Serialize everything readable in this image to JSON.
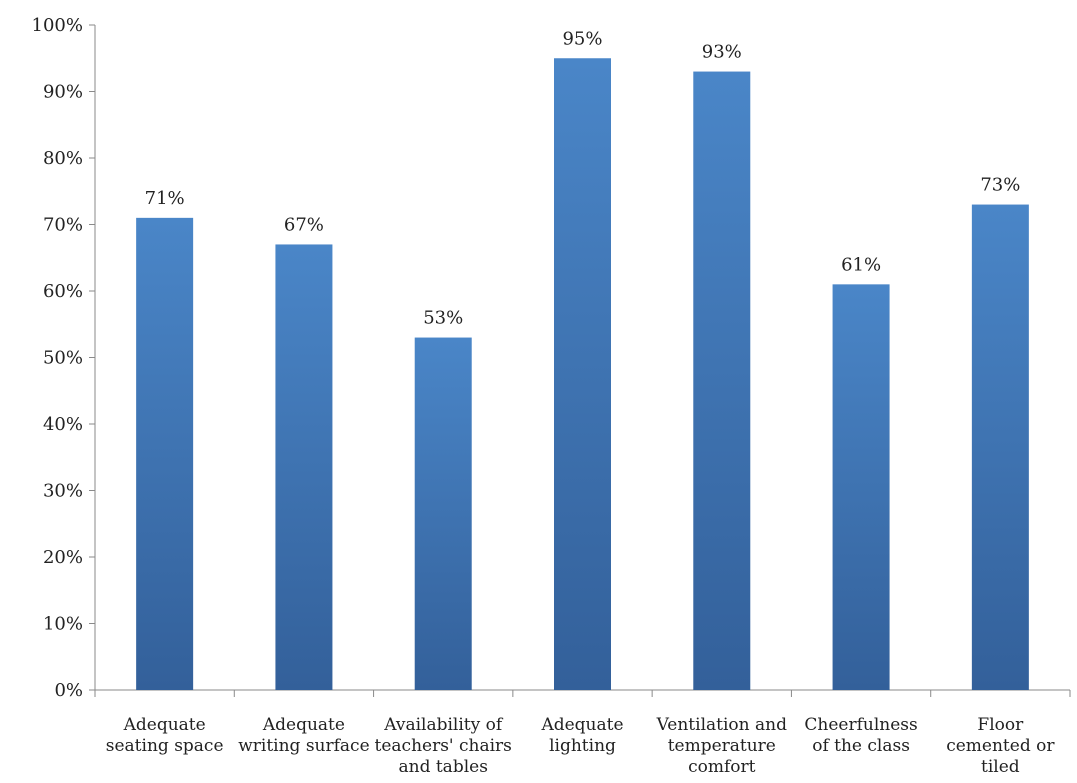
{
  "chart_data": {
    "type": "bar",
    "title": "",
    "xlabel": "",
    "ylabel": "",
    "categories": [
      [
        "Adequate",
        "seating space"
      ],
      [
        "Adequate",
        "writing surface"
      ],
      [
        "Availability of",
        "teachers' chairs",
        "and tables"
      ],
      [
        "Adequate",
        "lighting"
      ],
      [
        "Ventilation and",
        "temperature",
        "comfort"
      ],
      [
        "Cheerfulness",
        "of the class"
      ],
      [
        "Floor",
        "cemented or",
        "tiled"
      ]
    ],
    "values": [
      71,
      67,
      53,
      95,
      93,
      61,
      73
    ],
    "value_labels": [
      "71%",
      "67%",
      "53%",
      "95%",
      "93%",
      "61%",
      "73%"
    ],
    "ylim": [
      0,
      100
    ],
    "yticks": [
      0,
      10,
      20,
      30,
      40,
      50,
      60,
      70,
      80,
      90,
      100
    ],
    "ytick_labels": [
      "0%",
      "10%",
      "20%",
      "30%",
      "40%",
      "50%",
      "60%",
      "70%",
      "80%",
      "90%",
      "100%"
    ],
    "grid": false,
    "legend": "none",
    "colors": {
      "bar_top": "#4a86c8",
      "bar_bottom": "#33609a",
      "axis": "#8a8a8a"
    }
  }
}
